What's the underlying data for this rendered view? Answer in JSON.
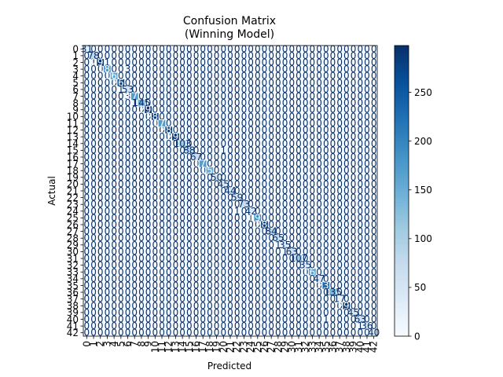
{
  "chart_data": {
    "type": "heatmap",
    "title": "Confusion Matrix",
    "subtitle": "(Winning Model)",
    "xlabel": "Predicted",
    "ylabel": "Actual",
    "n_classes": 43,
    "class_labels": [
      "0",
      "1",
      "2",
      "3",
      "4",
      "5",
      "6",
      "7",
      "8",
      "9",
      "10",
      "11",
      "12",
      "13",
      "14",
      "15",
      "16",
      "17",
      "18",
      "19",
      "20",
      "21",
      "22",
      "23",
      "24",
      "25",
      "26",
      "27",
      "28",
      "29",
      "30",
      "31",
      "32",
      "33",
      "34",
      "35",
      "36",
      "37",
      "38",
      "39",
      "40",
      "41",
      "42"
    ],
    "diagonal": [
      31,
      78,
      291,
      180,
      160,
      268,
      53,
      171,
      145,
      290,
      285,
      170,
      280,
      290,
      103,
      88,
      67,
      170,
      150,
      50,
      45,
      44,
      59,
      73,
      42,
      190,
      280,
      84,
      65,
      35,
      63,
      107,
      35,
      165,
      47,
      230,
      135,
      17,
      290,
      45,
      63,
      36,
      40
    ],
    "off_diagonal": [
      {
        "row": 2,
        "col": 1,
        "value": 1
      },
      {
        "row": 2,
        "col": 3,
        "value": 1
      },
      {
        "row": 3,
        "col": 6,
        "value": 3
      },
      {
        "row": 6,
        "col": 5,
        "value": 1
      },
      {
        "row": 7,
        "col": 6,
        "value": 3
      },
      {
        "row": 8,
        "col": 7,
        "value": 1
      },
      {
        "row": 15,
        "col": 20,
        "value": 1
      },
      {
        "row": 24,
        "col": 22,
        "value": 1
      },
      {
        "row": 25,
        "col": 24,
        "value": 1
      },
      {
        "row": 29,
        "col": 28,
        "value": 1
      },
      {
        "row": 30,
        "col": 29,
        "value": 1
      },
      {
        "row": 40,
        "col": 35,
        "value": 1
      },
      {
        "row": 41,
        "col": 40,
        "value": 1
      }
    ],
    "colorbar": {
      "colormap": "Blues",
      "min": 0,
      "max": 298,
      "ticks": [
        0,
        50,
        100,
        150,
        200,
        250
      ]
    },
    "colors": {
      "low": "#f7fbff",
      "high": "#08306b",
      "text_dark": "#08306b",
      "text_light": "#ffffff"
    }
  }
}
